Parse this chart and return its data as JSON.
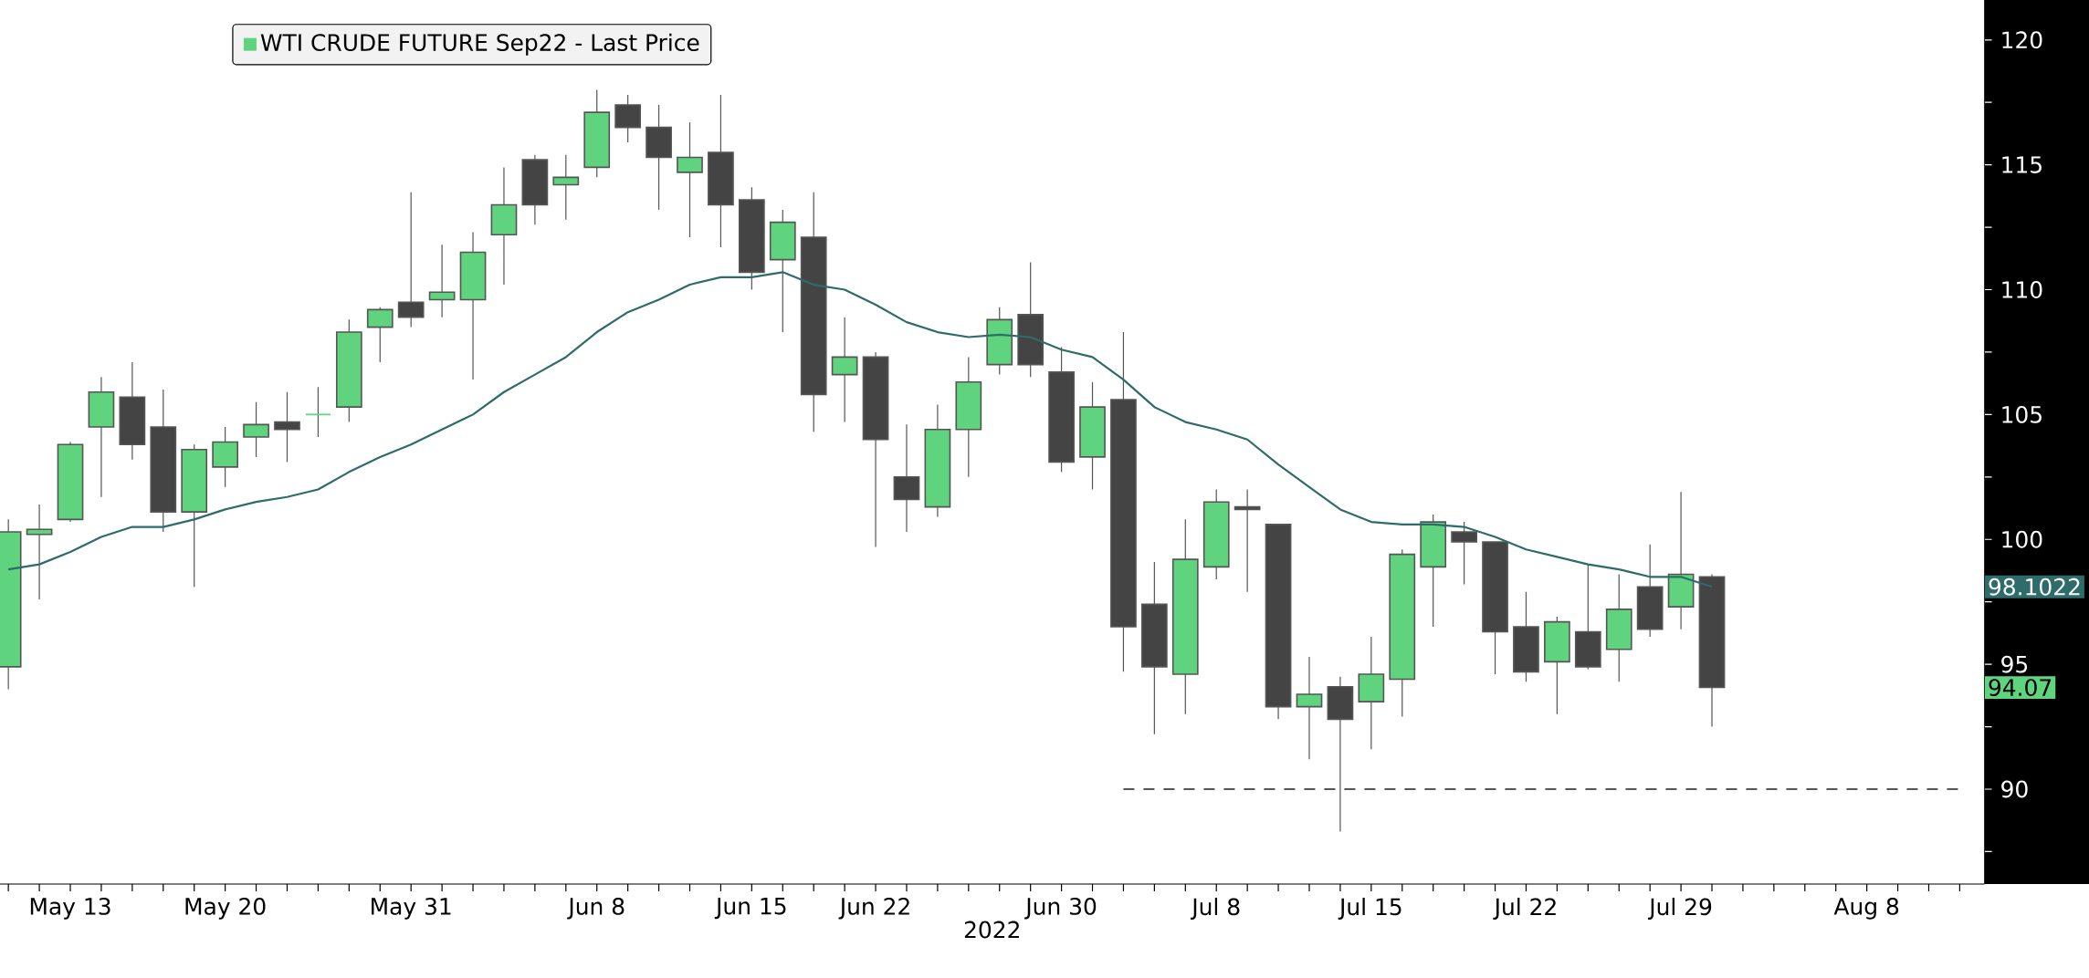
{
  "chart_data": {
    "type": "candlestick",
    "xlabel": "2022",
    "legend": "top left",
    "grid": false,
    "marker": "none",
    "categories": [
      null,
      null,
      "May 13",
      null,
      null,
      null,
      null,
      "May 20",
      null,
      null,
      null,
      null,
      null,
      "May 31",
      null,
      null,
      null,
      null,
      null,
      "Jun 8",
      null,
      null,
      null,
      null,
      "Jun 15",
      null,
      null,
      null,
      "Jun 22",
      null,
      null,
      null,
      null,
      null,
      "Jun 30",
      null,
      null,
      null,
      null,
      "Jul 8",
      null,
      null,
      null,
      null,
      "Jul 15",
      null,
      null,
      null,
      null,
      "Jul 22",
      null,
      null,
      null,
      null,
      "Jul 29",
      null,
      null,
      null,
      null,
      null,
      "Aug 8",
      null,
      null,
      null
    ],
    "ylim": [
      86.2,
      121.6
    ],
    "yticks": [
      {
        "value": 87.5,
        "label": null
      },
      90,
      {
        "value": 92.5,
        "label": null
      },
      95,
      {
        "value": 97.5,
        "label": null
      },
      100,
      {
        "value": 102.5,
        "label": null
      },
      105,
      {
        "value": 107.5,
        "label": null
      },
      110,
      {
        "value": 112.5,
        "label": null
      },
      115,
      {
        "value": 117.5,
        "label": null
      },
      120
    ],
    "annotations": [
      "94.07",
      "98.1022"
    ],
    "series": [
      {
        "name": "WTI CRUDE FUTURE Sep22 - Last Price",
        "color": "#5fd37e",
        "ohlc": [
          [
            94.9,
            100.8,
            94.0,
            100.3
          ],
          [
            100.2,
            101.4,
            97.6,
            100.4
          ],
          [
            100.8,
            103.9,
            100.7,
            103.8
          ],
          [
            104.5,
            106.5,
            101.7,
            105.9
          ],
          [
            105.7,
            107.1,
            103.2,
            103.8
          ],
          [
            104.5,
            106.0,
            100.3,
            101.1
          ],
          [
            101.1,
            103.8,
            98.1,
            103.6
          ],
          [
            102.9,
            104.5,
            102.1,
            103.9
          ],
          [
            104.1,
            105.5,
            103.3,
            104.6
          ],
          [
            104.7,
            105.9,
            103.1,
            104.4
          ],
          [
            105.0,
            106.1,
            104.1,
            105.0
          ],
          [
            105.3,
            108.8,
            104.7,
            108.3
          ],
          [
            108.5,
            109.3,
            107.1,
            109.2
          ],
          [
            109.5,
            113.9,
            108.5,
            108.9
          ],
          [
            109.6,
            111.8,
            108.9,
            109.9
          ],
          [
            109.6,
            112.3,
            106.4,
            111.5
          ],
          [
            112.2,
            114.9,
            110.2,
            113.4
          ],
          [
            115.2,
            115.4,
            112.6,
            113.4
          ],
          [
            114.2,
            115.4,
            112.8,
            114.5
          ],
          [
            114.9,
            118.0,
            114.5,
            117.1
          ],
          [
            117.4,
            117.8,
            115.9,
            116.5
          ],
          [
            116.5,
            117.4,
            113.2,
            115.3
          ],
          [
            114.7,
            116.7,
            112.1,
            115.3
          ],
          [
            115.5,
            117.8,
            111.7,
            113.4
          ],
          [
            113.6,
            114.1,
            110.0,
            110.7
          ],
          [
            111.2,
            113.2,
            108.3,
            112.7
          ],
          [
            112.1,
            113.9,
            104.3,
            105.8
          ],
          [
            106.6,
            108.9,
            104.7,
            107.3
          ],
          [
            107.3,
            107.5,
            99.7,
            104.0
          ],
          [
            102.5,
            104.6,
            100.3,
            101.6
          ],
          [
            101.3,
            105.4,
            100.9,
            104.4
          ],
          [
            104.4,
            107.3,
            102.5,
            106.3
          ],
          [
            107.0,
            109.3,
            106.6,
            108.8
          ],
          [
            109.0,
            111.1,
            106.5,
            107.0
          ],
          [
            106.7,
            107.7,
            102.7,
            103.1
          ],
          [
            103.3,
            106.3,
            102.0,
            105.3
          ],
          [
            105.6,
            108.3,
            94.7,
            96.5
          ],
          [
            97.4,
            99.1,
            92.2,
            94.9
          ],
          [
            94.6,
            100.8,
            93.0,
            99.2
          ],
          [
            98.9,
            102.0,
            98.4,
            101.5
          ],
          [
            101.3,
            102.0,
            97.9,
            101.2
          ],
          [
            100.6,
            100.6,
            92.8,
            93.3
          ],
          [
            93.3,
            95.3,
            91.2,
            93.8
          ],
          [
            94.1,
            94.5,
            88.3,
            92.8
          ],
          [
            93.5,
            96.1,
            91.6,
            94.6
          ],
          [
            94.4,
            99.6,
            92.9,
            99.4
          ],
          [
            98.9,
            101.0,
            96.5,
            100.7
          ],
          [
            100.3,
            100.7,
            98.2,
            99.9
          ],
          [
            99.9,
            99.9,
            94.6,
            96.3
          ],
          [
            96.5,
            97.9,
            94.3,
            94.7
          ],
          [
            95.1,
            96.9,
            93.0,
            96.7
          ],
          [
            96.3,
            99.0,
            94.8,
            94.9
          ],
          [
            95.6,
            98.6,
            94.3,
            97.2
          ],
          [
            98.1,
            99.8,
            96.1,
            96.4
          ],
          [
            97.3,
            101.9,
            96.4,
            98.6
          ],
          [
            98.5,
            98.6,
            92.5,
            94.07
          ],
          null,
          null,
          null,
          null,
          null,
          null,
          null,
          null
        ],
        "colors": [
          "#5fd37e",
          "#5fd37e",
          "#5fd37e",
          "#5fd37e",
          "#444444",
          "#444444",
          "#5fd37e",
          "#5fd37e",
          "#5fd37e",
          "#444444",
          "#5fd37e",
          "#5fd37e",
          "#5fd37e",
          "#444444",
          "#5fd37e",
          "#5fd37e",
          "#5fd37e",
          "#444444",
          "#5fd37e",
          "#5fd37e",
          "#444444",
          "#444444",
          "#5fd37e",
          "#444444",
          "#444444",
          "#5fd37e",
          "#444444",
          "#5fd37e",
          "#444444",
          "#444444",
          "#5fd37e",
          "#5fd37e",
          "#5fd37e",
          "#444444",
          "#444444",
          "#5fd37e",
          "#444444",
          "#444444",
          "#5fd37e",
          "#5fd37e",
          "#444444",
          "#444444",
          "#5fd37e",
          "#444444",
          "#5fd37e",
          "#5fd37e",
          "#5fd37e",
          "#444444",
          "#444444",
          "#444444",
          "#5fd37e",
          "#444444",
          "#5fd37e",
          "#444444",
          "#5fd37e",
          "#444444",
          null,
          null,
          null,
          null,
          null,
          null,
          null,
          null
        ]
      },
      {
        "type": "line",
        "color": "#2e6b6b",
        "values": [
          98.8,
          99.0,
          99.5,
          100.1,
          100.5,
          100.5,
          100.8,
          101.2,
          101.5,
          101.7,
          102.0,
          102.7,
          103.3,
          103.8,
          104.4,
          105.0,
          105.9,
          106.6,
          107.3,
          108.3,
          109.1,
          109.6,
          110.2,
          110.5,
          110.5,
          110.7,
          110.2,
          110.0,
          109.4,
          108.7,
          108.3,
          108.1,
          108.2,
          108.1,
          107.6,
          107.3,
          106.4,
          105.3,
          104.7,
          104.4,
          104.0,
          103.0,
          102.1,
          101.2,
          100.7,
          100.6,
          100.6,
          100.5,
          100.1,
          99.6,
          99.3,
          99.0,
          98.8,
          98.5,
          98.5,
          98.1,
          null,
          null,
          null,
          null,
          null,
          null,
          null,
          null
        ]
      },
      {
        "type": "line",
        "color": "#555555",
        "line_style": "dashed",
        "values": [
          null,
          null,
          null,
          null,
          null,
          null,
          null,
          null,
          null,
          null,
          null,
          null,
          null,
          null,
          null,
          null,
          null,
          null,
          null,
          null,
          null,
          null,
          null,
          null,
          null,
          null,
          null,
          null,
          null,
          null,
          null,
          null,
          null,
          null,
          null,
          null,
          90,
          90,
          90,
          90,
          90,
          90,
          90,
          90,
          90,
          90,
          90,
          90,
          90,
          90,
          90,
          90,
          90,
          90,
          90,
          90,
          90,
          90,
          90,
          90,
          90,
          90,
          90,
          90
        ]
      }
    ]
  }
}
